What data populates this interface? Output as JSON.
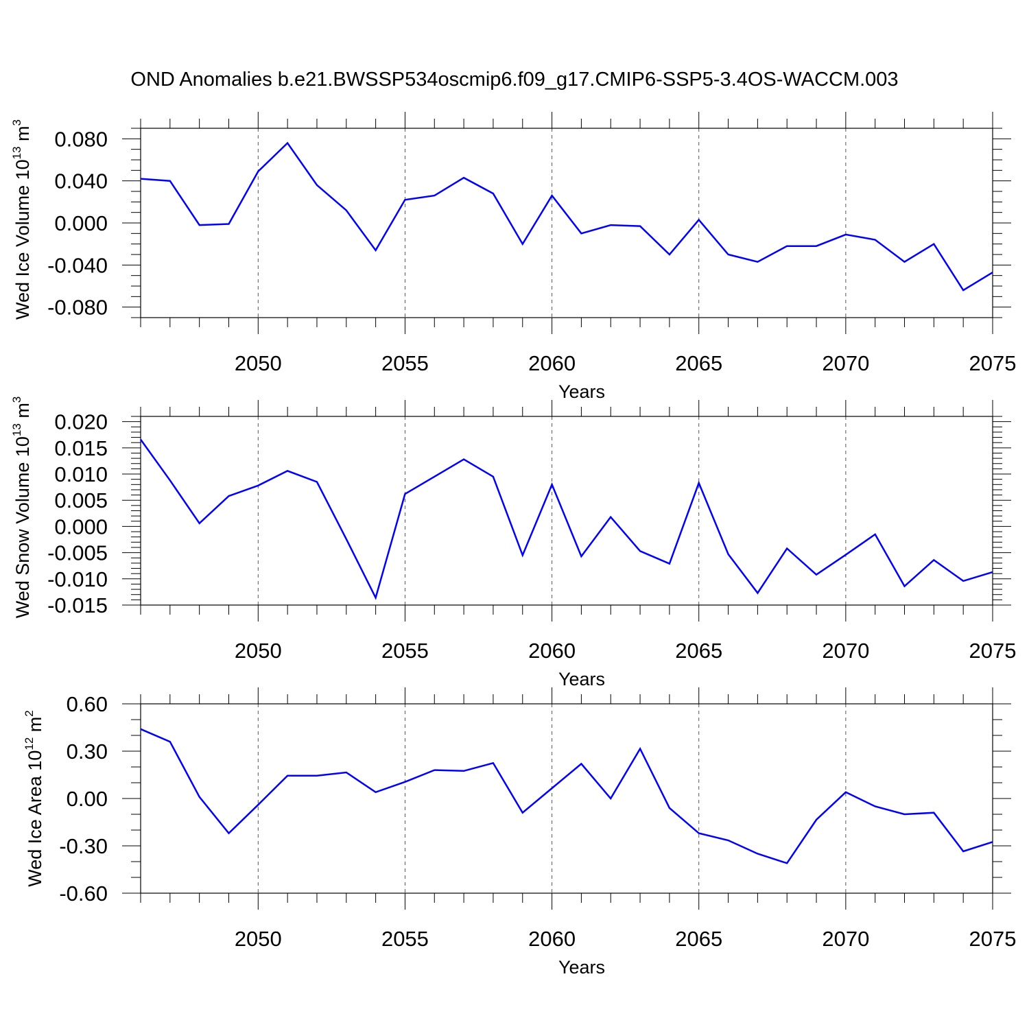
{
  "title": "OND Anomalies b.e21.BWSSP534oscmip6.f09_g17.CMIP6-SSP5-3.4OS-WACCM.003",
  "line_color": "#0000ff",
  "chart_data": [
    {
      "type": "line",
      "name": "ice-volume",
      "ylabel_main": "Wed Ice Volume 10",
      "ylabel_exp": "13",
      "ylabel_unit": " m",
      "ylabel_unit_exp": "3",
      "xlabel": "Years",
      "xlim": [
        2046,
        2075
      ],
      "ylim": [
        -0.09,
        0.09
      ],
      "yticks": [
        -0.08,
        -0.04,
        0.0,
        0.04,
        0.08
      ],
      "ytick_labels": [
        "-0.080",
        "-0.040",
        "0.000",
        "0.040",
        "0.080"
      ],
      "yminor_step": 0.01,
      "xticks": [
        2050,
        2055,
        2060,
        2065,
        2070,
        2075
      ],
      "xtick_labels": [
        "2050",
        "2055",
        "2060",
        "2065",
        "2070",
        "2075"
      ],
      "x": [
        2046,
        2047,
        2048,
        2049,
        2050,
        2051,
        2052,
        2053,
        2054,
        2055,
        2056,
        2057,
        2058,
        2059,
        2060,
        2061,
        2062,
        2063,
        2064,
        2065,
        2066,
        2067,
        2068,
        2069,
        2070,
        2071,
        2072,
        2073,
        2074,
        2075
      ],
      "values": [
        0.042,
        0.04,
        -0.002,
        -0.001,
        0.049,
        0.076,
        0.036,
        0.012,
        -0.026,
        0.022,
        0.026,
        0.043,
        0.028,
        -0.02,
        0.026,
        -0.01,
        -0.002,
        -0.003,
        -0.03,
        0.003,
        -0.03,
        -0.037,
        -0.022,
        -0.022,
        -0.011,
        -0.016,
        -0.037,
        -0.02,
        -0.064,
        -0.047
      ]
    },
    {
      "type": "line",
      "name": "snow-volume",
      "ylabel_main": "Wed Snow Volume 10",
      "ylabel_exp": "13",
      "ylabel_unit": " m",
      "ylabel_unit_exp": "3",
      "xlabel": "Years",
      "xlim": [
        2046,
        2075
      ],
      "ylim": [
        -0.015,
        0.021
      ],
      "yticks": [
        -0.015,
        -0.01,
        -0.005,
        0.0,
        0.005,
        0.01,
        0.015,
        0.02
      ],
      "ytick_labels": [
        "-0.015",
        "-0.010",
        "-0.005",
        "0.000",
        "0.005",
        "0.010",
        "0.015",
        "0.020"
      ],
      "yminor_step": 0.001,
      "xticks": [
        2050,
        2055,
        2060,
        2065,
        2070,
        2075
      ],
      "xtick_labels": [
        "2050",
        "2055",
        "2060",
        "2065",
        "2070",
        "2075"
      ],
      "x": [
        2046,
        2047,
        2048,
        2049,
        2050,
        2051,
        2052,
        2053,
        2054,
        2055,
        2056,
        2057,
        2058,
        2059,
        2060,
        2061,
        2062,
        2063,
        2064,
        2065,
        2066,
        2067,
        2068,
        2069,
        2070,
        2071,
        2072,
        2073,
        2074,
        2075
      ],
      "values": [
        0.0166,
        0.0088,
        0.0006,
        0.0058,
        0.0078,
        0.0106,
        0.0085,
        -0.0024,
        -0.0136,
        0.0062,
        0.0095,
        0.0128,
        0.0095,
        -0.0055,
        0.008,
        -0.0057,
        0.0018,
        -0.0047,
        -0.0071,
        0.0083,
        -0.0053,
        -0.0127,
        -0.0042,
        -0.0092,
        -0.0054,
        -0.0015,
        -0.0114,
        -0.0064,
        -0.0104,
        -0.0087
      ]
    },
    {
      "type": "line",
      "name": "ice-area",
      "ylabel_main": "Wed Ice Area 10",
      "ylabel_exp": "12",
      "ylabel_unit": " m",
      "ylabel_unit_exp": "2",
      "xlabel": "Years",
      "xlim": [
        2046,
        2075
      ],
      "ylim": [
        -0.6,
        0.6
      ],
      "yticks": [
        -0.6,
        -0.3,
        0.0,
        0.3,
        0.6
      ],
      "ytick_labels": [
        "-0.60",
        "-0.30",
        "0.00",
        "0.30",
        "0.60"
      ],
      "yminor_step": 0.1,
      "xticks": [
        2050,
        2055,
        2060,
        2065,
        2070,
        2075
      ],
      "xtick_labels": [
        "2050",
        "2055",
        "2060",
        "2065",
        "2070",
        "2075"
      ],
      "x": [
        2046,
        2047,
        2048,
        2049,
        2050,
        2051,
        2052,
        2053,
        2054,
        2055,
        2056,
        2057,
        2058,
        2059,
        2060,
        2061,
        2062,
        2063,
        2064,
        2065,
        2066,
        2067,
        2068,
        2069,
        2070,
        2071,
        2072,
        2073,
        2074,
        2075
      ],
      "values": [
        0.44,
        0.36,
        0.01,
        -0.22,
        -0.04,
        0.145,
        0.145,
        0.165,
        0.04,
        0.105,
        0.18,
        0.175,
        0.225,
        -0.09,
        0.065,
        0.22,
        0.0,
        0.315,
        -0.06,
        -0.22,
        -0.265,
        -0.35,
        -0.41,
        -0.135,
        0.04,
        -0.05,
        -0.1,
        -0.09,
        -0.335,
        -0.275
      ]
    }
  ]
}
